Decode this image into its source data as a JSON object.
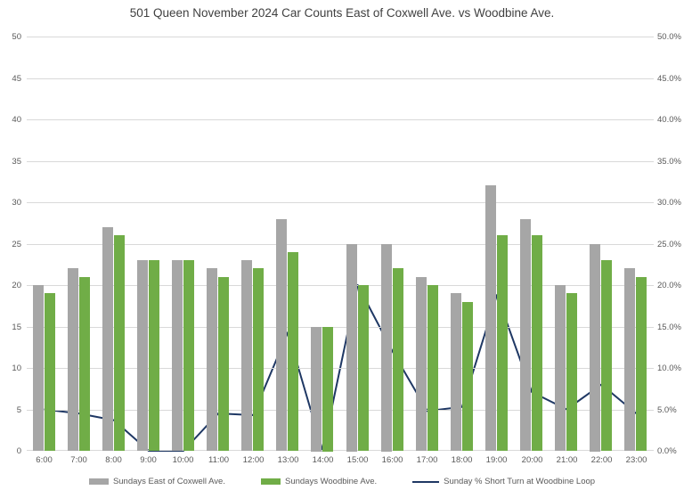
{
  "chart_data": {
    "type": "combo bar+line",
    "title": "501 Queen November 2024 Car Counts East of Coxwell Ave. vs Woodbine Ave.",
    "categories": [
      "6:00",
      "7:00",
      "8:00",
      "9:00",
      "10:00",
      "11:00",
      "12:00",
      "13:00",
      "14:00",
      "15:00",
      "16:00",
      "17:00",
      "18:00",
      "19:00",
      "20:00",
      "21:00",
      "22:00",
      "23:00"
    ],
    "series": [
      {
        "name": "Sundays East of Coxwell Ave.",
        "type": "bar",
        "axis": "left",
        "color": "#A6A6A6",
        "values": [
          20,
          22,
          27,
          23,
          23,
          22,
          23,
          28,
          15,
          25,
          25,
          21,
          19,
          32,
          28,
          20,
          25,
          22
        ]
      },
      {
        "name": "Sundays Woodbine Ave.",
        "type": "bar",
        "axis": "left",
        "color": "#70AD47",
        "values": [
          19,
          21,
          26,
          23,
          23,
          21,
          22,
          24,
          15,
          20,
          22,
          20,
          18,
          26,
          26,
          19,
          23,
          21
        ]
      },
      {
        "name": "Sunday % Short Turn at Woodbine Loop",
        "type": "line",
        "axis": "right",
        "color": "#1F3864",
        "values": [
          5.0,
          4.5,
          3.7,
          0.0,
          0.0,
          4.5,
          4.3,
          14.3,
          0.0,
          20.0,
          12.0,
          4.8,
          5.3,
          18.8,
          7.1,
          5.0,
          8.0,
          4.5
        ]
      }
    ],
    "left_axis": {
      "min": 0,
      "max": 50,
      "step": 5,
      "ticks": [
        "0",
        "5",
        "10",
        "15",
        "20",
        "25",
        "30",
        "35",
        "40",
        "45",
        "50"
      ]
    },
    "right_axis": {
      "min": 0,
      "max": 50,
      "step": 5,
      "ticks": [
        "0.0%",
        "5.0%",
        "10.0%",
        "15.0%",
        "20.0%",
        "25.0%",
        "30.0%",
        "35.0%",
        "40.0%",
        "45.0%",
        "50.0%"
      ]
    },
    "grid": true,
    "legend_position": "bottom",
    "colors": {
      "gridline": "#D9D9D9",
      "axis_text": "#595959",
      "title_text": "#404040"
    }
  }
}
